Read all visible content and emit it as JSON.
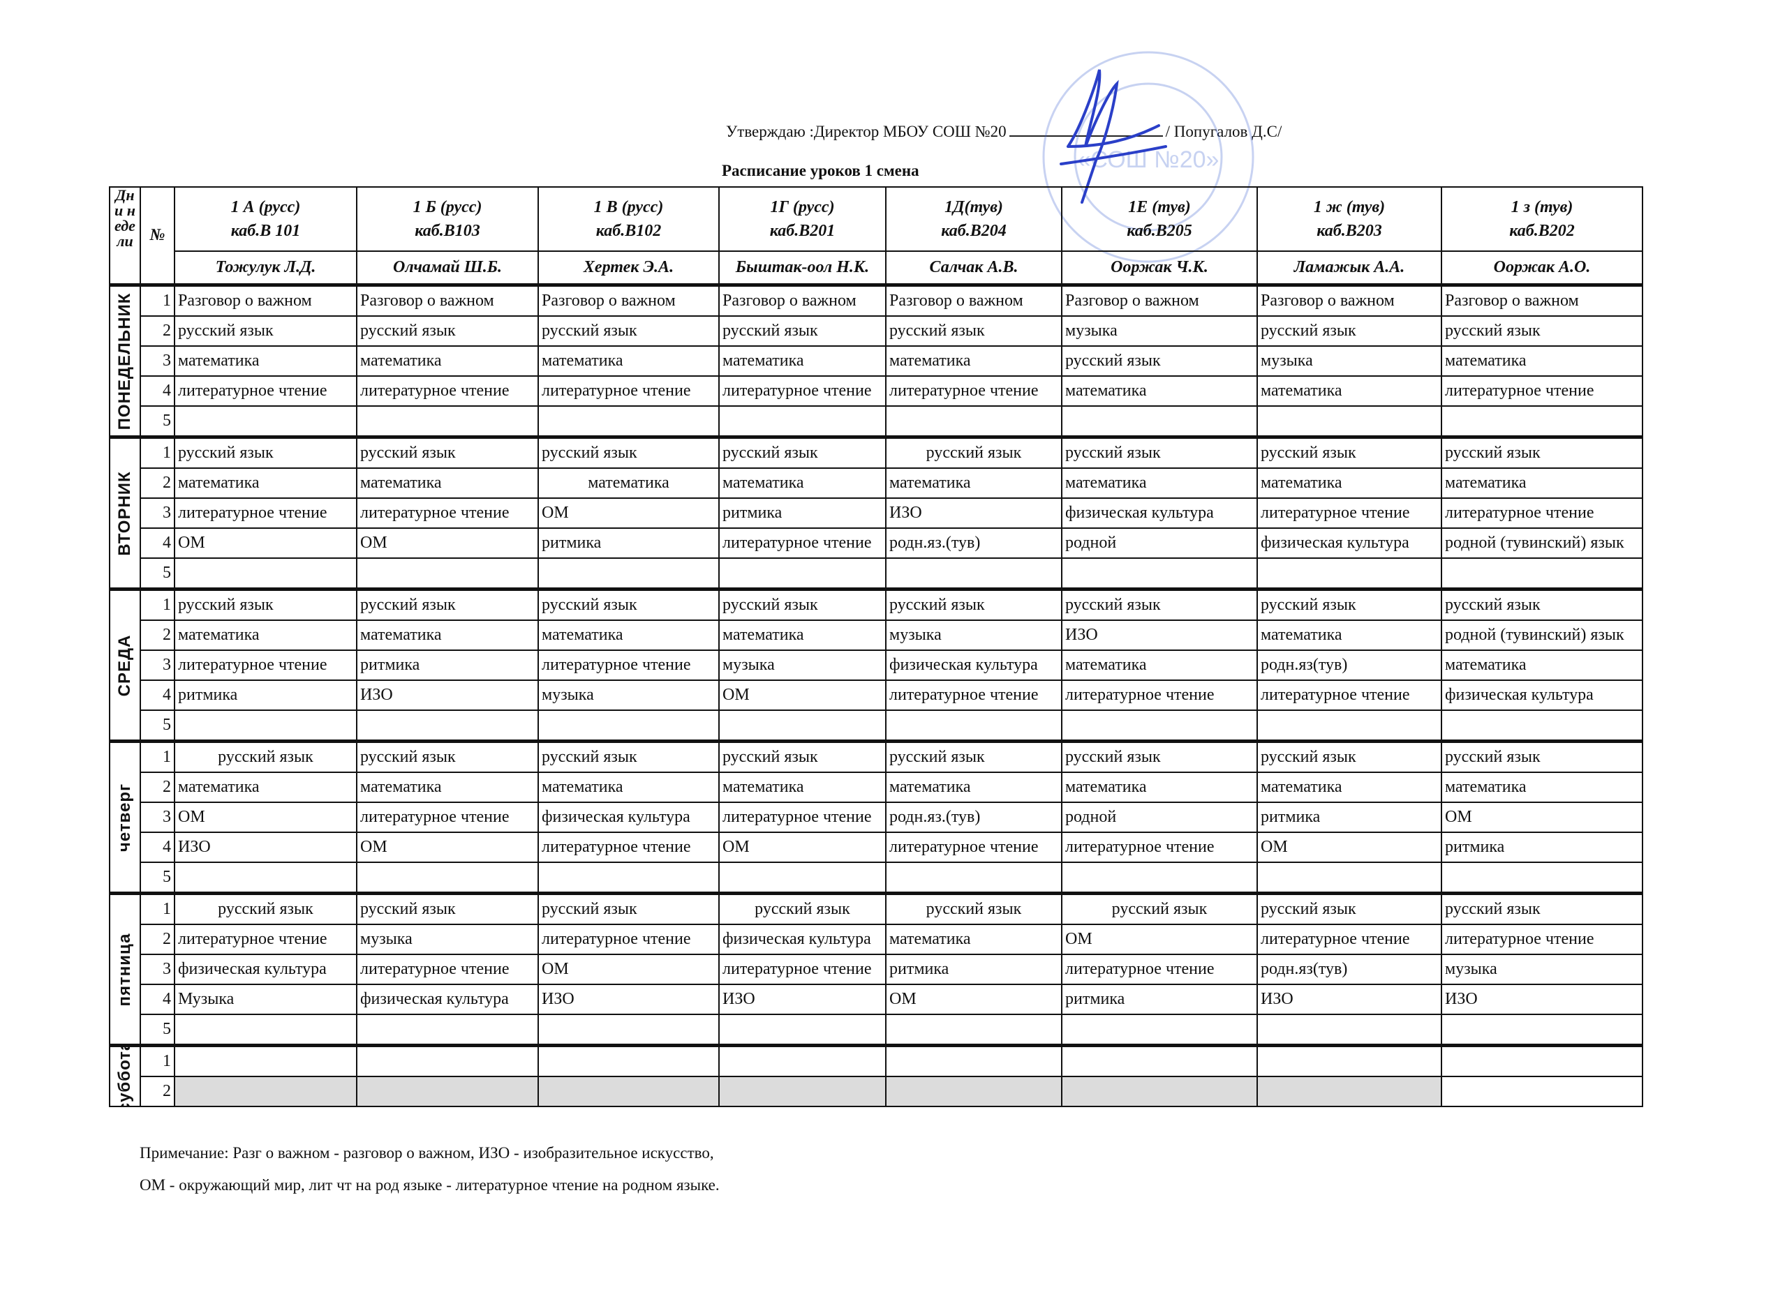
{
  "approval": {
    "text": "Утверждаю :Директор МБОУ СОШ №20",
    "name": "/ Попугалов Д.С/"
  },
  "stamp": {
    "text": "«СОШ №20»",
    "color": "#3a5fd0"
  },
  "title": "Расписание уроков  1 смена",
  "header": {
    "corner": "Дни недели",
    "num": "№",
    "classes": [
      {
        "name": "1 А (русс)",
        "room": "каб.В 101",
        "teacher": "Тожулук Л.Д."
      },
      {
        "name": "1 Б (русс)",
        "room": "каб.В103",
        "teacher": "Олчамай Ш.Б."
      },
      {
        "name": "1 В (русс)",
        "room": "каб.В102",
        "teacher": "Хертек Э.А."
      },
      {
        "name": "1Г (русс)",
        "room": "каб.В201",
        "teacher": "Быштак-оол Н.К."
      },
      {
        "name": "1Д(тув)",
        "room": "каб.В204",
        "teacher": "Салчак А.В."
      },
      {
        "name": "1Е (тув)",
        "room": "каб.В205",
        "teacher": "Ооржак Ч.К."
      },
      {
        "name": "1 ж (тув)",
        "room": "каб.В203",
        "teacher": "Ламажык А.А."
      },
      {
        "name": "1 з (тув)",
        "room": "каб.В202",
        "teacher": "Ооржак А.О."
      }
    ]
  },
  "days": [
    {
      "name": "ПОНЕДЕЛЬНИК",
      "rows": [
        {
          "n": "1",
          "lessons": [
            "Разговор о важном",
            "Разговор о важном",
            "Разговор о важном",
            "Разговор о важном",
            "Разговор о важном",
            "Разговор о важном",
            "Разговор о важном",
            "Разговор о важном"
          ]
        },
        {
          "n": "2",
          "lessons": [
            "русский язык",
            "русский язык",
            "русский язык",
            "русский язык",
            "русский язык",
            "музыка",
            "русский язык",
            "русский язык"
          ]
        },
        {
          "n": "3",
          "lessons": [
            "математика",
            "математика",
            "математика",
            "математика",
            "математика",
            "русский язык",
            "музыка",
            "математика"
          ]
        },
        {
          "n": "4",
          "lessons": [
            "литературное чтение",
            "литературное чтение",
            "литературное чтение",
            "литературное чтение",
            "литературное чтение",
            "математика",
            "математика",
            "литературное чтение"
          ]
        },
        {
          "n": "5",
          "lessons": [
            "",
            "",
            "",
            "",
            "",
            "",
            "",
            ""
          ]
        }
      ]
    },
    {
      "name": "ВТОРНИК",
      "rows": [
        {
          "n": "1",
          "lessons": [
            "русский язык",
            "русский язык",
            "русский язык",
            "русский язык",
            "русский язык",
            "русский язык",
            "русский язык",
            "русский язык"
          ]
        },
        {
          "n": "2",
          "lessons": [
            "математика",
            "математика",
            "математика",
            "математика",
            "математика",
            "математика",
            "математика",
            "математика"
          ]
        },
        {
          "n": "3",
          "lessons": [
            "литературное чтение",
            "литературное чтение",
            "ОМ",
            "ритмика",
            "ИЗО",
            "физическая культура",
            "литературное чтение",
            "литературное чтение"
          ]
        },
        {
          "n": "4",
          "lessons": [
            "ОМ",
            "ОМ",
            "ритмика",
            "литературное чтение",
            "родн.яз.(тув)",
            "родной",
            "физическая культура",
            "родной (тувинский) язык"
          ]
        },
        {
          "n": "5",
          "lessons": [
            "",
            "",
            "",
            "",
            "",
            "",
            "",
            ""
          ]
        }
      ]
    },
    {
      "name": "СРЕДА",
      "rows": [
        {
          "n": "1",
          "lessons": [
            "русский язык",
            "русский язык",
            "русский язык",
            "русский язык",
            "русский язык",
            "русский язык",
            "русский язык",
            "русский язык"
          ]
        },
        {
          "n": "2",
          "lessons": [
            "математика",
            "математика",
            "математика",
            "математика",
            "музыка",
            "ИЗО",
            "математика",
            "родной (тувинский) язык"
          ]
        },
        {
          "n": "3",
          "lessons": [
            "литературное чтение",
            "ритмика",
            "литературное чтение",
            "музыка",
            "физическая культура",
            "математика",
            "родн.яз(тув)",
            "математика"
          ]
        },
        {
          "n": "4",
          "lessons": [
            "ритмика",
            "ИЗО",
            "музыка",
            "ОМ",
            "литературное чтение",
            "литературное чтение",
            "литературное чтение",
            "физическая культура"
          ]
        },
        {
          "n": "5",
          "lessons": [
            "",
            "",
            "",
            "",
            "",
            "",
            "",
            ""
          ]
        }
      ]
    },
    {
      "name": "четверг",
      "rows": [
        {
          "n": "1",
          "lessons": [
            "русский язык",
            "русский язык",
            "русский язык",
            "русский язык",
            "русский язык",
            "русский язык",
            "русский язык",
            "русский язык"
          ]
        },
        {
          "n": "2",
          "lessons": [
            "математика",
            "математика",
            "математика",
            "математика",
            "математика",
            "математика",
            "математика",
            "математика"
          ]
        },
        {
          "n": "3",
          "lessons": [
            "ОМ",
            "литературное чтение",
            "физическая культура",
            "литературное чтение",
            "родн.яз.(тув)",
            "родной",
            "ритмика",
            "ОМ"
          ]
        },
        {
          "n": "4",
          "lessons": [
            "ИЗО",
            "ОМ",
            "литературное чтение",
            "ОМ",
            "литературное чтение",
            "литературное чтение",
            "ОМ",
            "ритмика"
          ]
        },
        {
          "n": "5",
          "lessons": [
            "",
            "",
            "",
            "",
            "",
            "",
            "",
            ""
          ]
        }
      ]
    },
    {
      "name": "пятница",
      "rows": [
        {
          "n": "1",
          "lessons": [
            "русский язык",
            "русский язык",
            "русский язык",
            "русский язык",
            "русский язык",
            "русский язык",
            "русский язык",
            "русский язык"
          ]
        },
        {
          "n": "2",
          "lessons": [
            "литературное чтение",
            "музыка",
            "литературное чтение",
            "физическая культура",
            "математика",
            "ОМ",
            "литературное чтение",
            "литературное чтение"
          ]
        },
        {
          "n": "3",
          "lessons": [
            "физическая культура",
            "литературное чтение",
            "ОМ",
            "литературное чтение",
            "ритмика",
            "литературное чтение",
            "родн.яз(тув)",
            "музыка"
          ]
        },
        {
          "n": "4",
          "lessons": [
            "Музыка",
            "физическая культура",
            "ИЗО",
            "ИЗО",
            "ОМ",
            "ритмика",
            "ИЗО",
            "ИЗО"
          ]
        },
        {
          "n": "5",
          "lessons": [
            "",
            "",
            "",
            "",
            "",
            "",
            "",
            ""
          ]
        }
      ]
    },
    {
      "name": "суббота",
      "rows": [
        {
          "n": "1",
          "lessons": [
            "",
            "",
            "",
            "",
            "",
            "",
            "",
            ""
          ]
        },
        {
          "n": "2",
          "lessons": [
            "",
            "",
            "",
            "",
            "",
            "",
            "",
            ""
          ]
        }
      ]
    }
  ],
  "notes": [
    "Примечание: Разг о важном - разговор о важном, ИЗО - изобразительное искусство,",
    "ОМ - окружающий мир, лит чт на род языке - литературное чтение на родном языке."
  ]
}
